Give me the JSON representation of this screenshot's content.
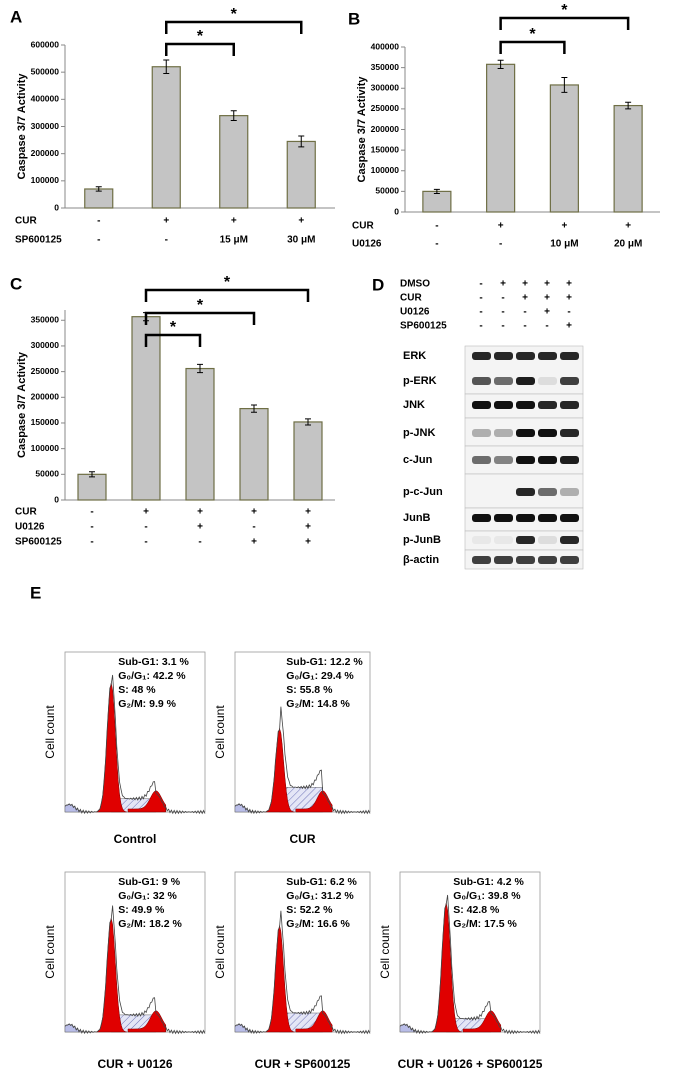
{
  "chart_data": [
    {
      "type": "bar",
      "panel": "A",
      "y_label": "Caspase 3/7 Activity",
      "values": [
        70000,
        520000,
        340000,
        245000
      ],
      "errors": [
        8000,
        25000,
        18000,
        20000
      ],
      "color": "#c4c4c4",
      "edge_color": "#6f6f45",
      "ylim": [
        0,
        600000
      ],
      "yticks": [
        0,
        100000,
        200000,
        300000,
        400000,
        500000,
        600000
      ],
      "rows": [
        {
          "label": "CUR",
          "cells": [
            "-",
            "+",
            "+",
            "+"
          ]
        },
        {
          "label": "SP600125",
          "cells": [
            "-",
            "-",
            "15 μM",
            "30 μM"
          ]
        }
      ],
      "significance": [
        {
          "label": "*",
          "pair": [
            1,
            2
          ]
        },
        {
          "label": "*",
          "pair": [
            1,
            3
          ]
        }
      ]
    },
    {
      "type": "bar",
      "panel": "B",
      "y_label": "Caspase 3/7 Activity",
      "values": [
        50000,
        358000,
        308000,
        258000
      ],
      "errors": [
        5000,
        10000,
        18000,
        8000
      ],
      "color": "#c4c4c4",
      "edge_color": "#6f6f45",
      "ylim": [
        0,
        400000
      ],
      "yticks": [
        0,
        50000,
        100000,
        150000,
        200000,
        250000,
        300000,
        350000,
        400000
      ],
      "rows": [
        {
          "label": "CUR",
          "cells": [
            "-",
            "+",
            "+",
            "+"
          ]
        },
        {
          "label": "U0126",
          "cells": [
            "-",
            "-",
            "10 μM",
            "20 μM"
          ]
        }
      ],
      "significance": [
        {
          "label": "*",
          "pair": [
            1,
            2
          ]
        },
        {
          "label": "*",
          "pair": [
            1,
            3
          ]
        }
      ]
    },
    {
      "type": "bar",
      "panel": "C",
      "y_label": "Caspase 3/7 Activity",
      "values": [
        50000,
        357000,
        256000,
        178000,
        152000
      ],
      "errors": [
        5000,
        8000,
        8000,
        7000,
        6000
      ],
      "color": "#c4c4c4",
      "edge_color": "#6f6f45",
      "ylim": [
        0,
        370000
      ],
      "yticks": [
        0,
        50000,
        100000,
        150000,
        200000,
        250000,
        300000,
        350000
      ],
      "rows": [
        {
          "label": "CUR",
          "cells": [
            "-",
            "+",
            "+",
            "+",
            "+"
          ]
        },
        {
          "label": "U0126",
          "cells": [
            "-",
            "-",
            "+",
            "-",
            "+"
          ]
        },
        {
          "label": "SP600125",
          "cells": [
            "-",
            "-",
            "-",
            "+",
            "+"
          ]
        }
      ],
      "significance": [
        {
          "label": "*",
          "pair": [
            1,
            2
          ]
        },
        {
          "label": "*",
          "pair": [
            1,
            3
          ]
        },
        {
          "label": "*",
          "pair": [
            1,
            4
          ]
        }
      ]
    }
  ],
  "blot": {
    "panel": "D",
    "treatments": [
      {
        "label": "DMSO",
        "cells": [
          "-",
          "+",
          "+",
          "+",
          "+"
        ]
      },
      {
        "label": "CUR",
        "cells": [
          "-",
          "-",
          "+",
          "+",
          "+"
        ]
      },
      {
        "label": "U0126",
        "cells": [
          "-",
          "-",
          "-",
          "+",
          "-"
        ]
      },
      {
        "label": "SP600125",
        "cells": [
          "-",
          "-",
          "-",
          "-",
          "+"
        ]
      }
    ],
    "proteins": [
      "ERK",
      "p-ERK",
      "JNK",
      "p-JNK",
      "c-Jun",
      "p-c-Jun",
      "JunB",
      "p-JunB",
      "β-actin"
    ]
  },
  "flow": {
    "panel": "E",
    "histograms": [
      {
        "y_label": "Cell count",
        "stats": [
          "Sub-G1: 3.1 %",
          "G₀/G₁: 42.2 %",
          "S: 48 %",
          "G₂/M: 9.9 %"
        ],
        "caption": "Control"
      },
      {
        "y_label": "Cell count",
        "stats": [
          "Sub-G1: 12.2 %",
          "G₀/G₁: 29.4 %",
          "S: 55.8 %",
          "G₂/M: 14.8 %"
        ],
        "caption": "CUR"
      },
      {
        "y_label": "Cell count",
        "stats": [
          "Sub-G1: 9 %",
          "G₀/G₁: 32 %",
          "S: 49.9 %",
          "G₂/M: 18.2 %"
        ],
        "caption": "CUR + U0126"
      },
      {
        "y_label": "Cell count",
        "stats": [
          "Sub-G1: 6.2 %",
          "G₀/G₁: 31.2 %",
          "S: 52.2 %",
          "G₂/M: 16.6 %"
        ],
        "caption": "CUR + SP600125"
      },
      {
        "y_label": "Cell count",
        "stats": [
          "Sub-G1: 4.2 %",
          "G₀/G₁: 39.8 %",
          "S: 42.8 %",
          "G₂/M: 17.5 %"
        ],
        "caption": "CUR + U0126 + SP600125"
      }
    ]
  }
}
